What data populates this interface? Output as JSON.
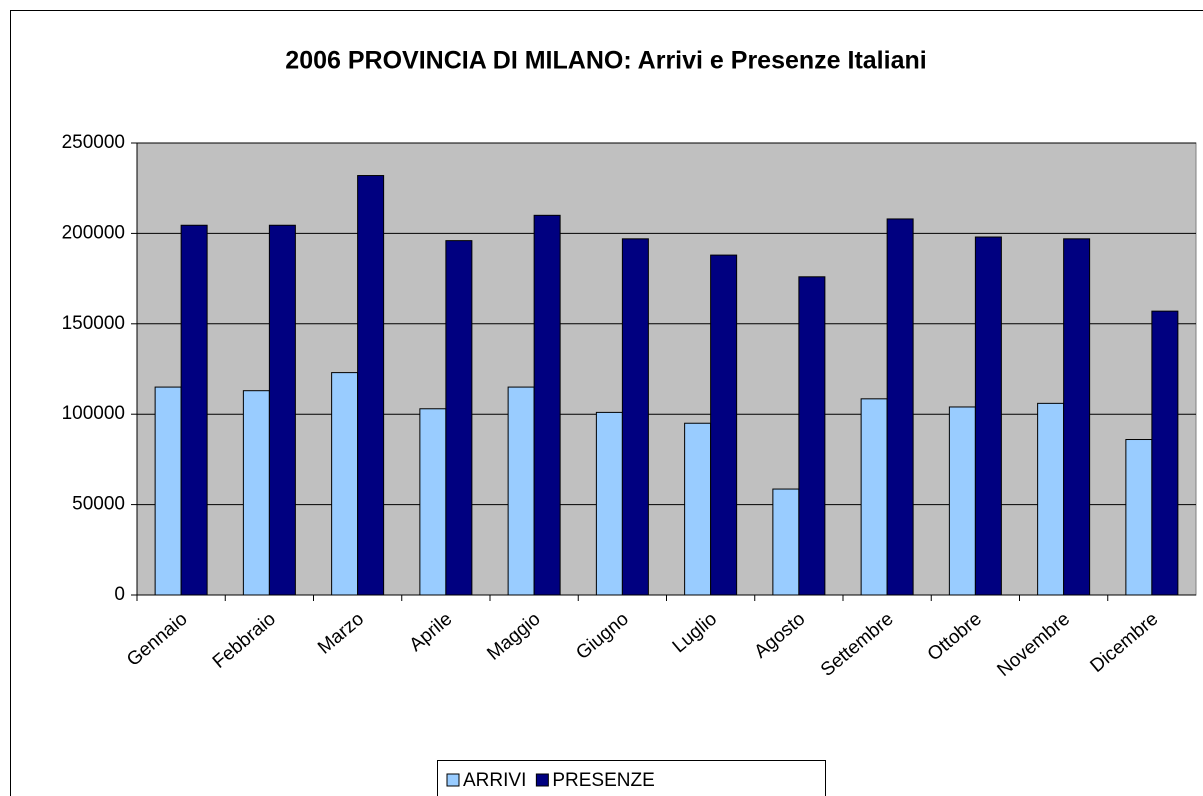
{
  "chart_data": {
    "type": "bar",
    "title": "2006 PROVINCIA DI MILANO: Arrivi e Presenze Italiani",
    "categories": [
      "Gennaio",
      "Febbraio",
      "Marzo",
      "Aprile",
      "Maggio",
      "Giugno",
      "Luglio",
      "Agosto",
      "Settembre",
      "Ottobre",
      "Novembre",
      "Dicembre"
    ],
    "series": [
      {
        "name": "ARRIVI",
        "color": "#99ccff",
        "values": [
          115000,
          113000,
          123000,
          103000,
          115000,
          101000,
          95000,
          58600,
          108500,
          104000,
          106000,
          86000
        ]
      },
      {
        "name": "PRESENZE",
        "color": "#000080",
        "values": [
          204500,
          204500,
          232000,
          196000,
          210000,
          197000,
          188000,
          176000,
          208000,
          198000,
          197000,
          157000
        ]
      }
    ],
    "ylim": [
      0,
      250000
    ],
    "yticks": [
      0,
      50000,
      100000,
      150000,
      200000,
      250000
    ],
    "grid": true,
    "legend": "bottom"
  }
}
